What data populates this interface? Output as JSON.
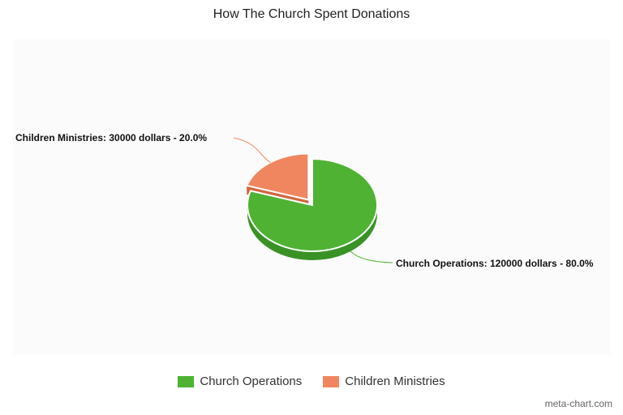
{
  "chart_data": {
    "type": "pie",
    "title": "How The Church Spent Donations",
    "slices": [
      {
        "name": "Church Operations",
        "value": 120000,
        "percent": 80.0,
        "color": "#4fb233",
        "side_color": "#3a9226",
        "label": "Church Operations: 120000 dollars - 80.0%"
      },
      {
        "name": "Children Ministries",
        "value": 30000,
        "percent": 20.0,
        "color": "#f08660",
        "side_color": "#d0663f",
        "label": "Children Ministries: 30000 dollars - 20.0%"
      }
    ],
    "legend_position": "bottom",
    "three_d": true
  },
  "credit": "meta-chart.com"
}
